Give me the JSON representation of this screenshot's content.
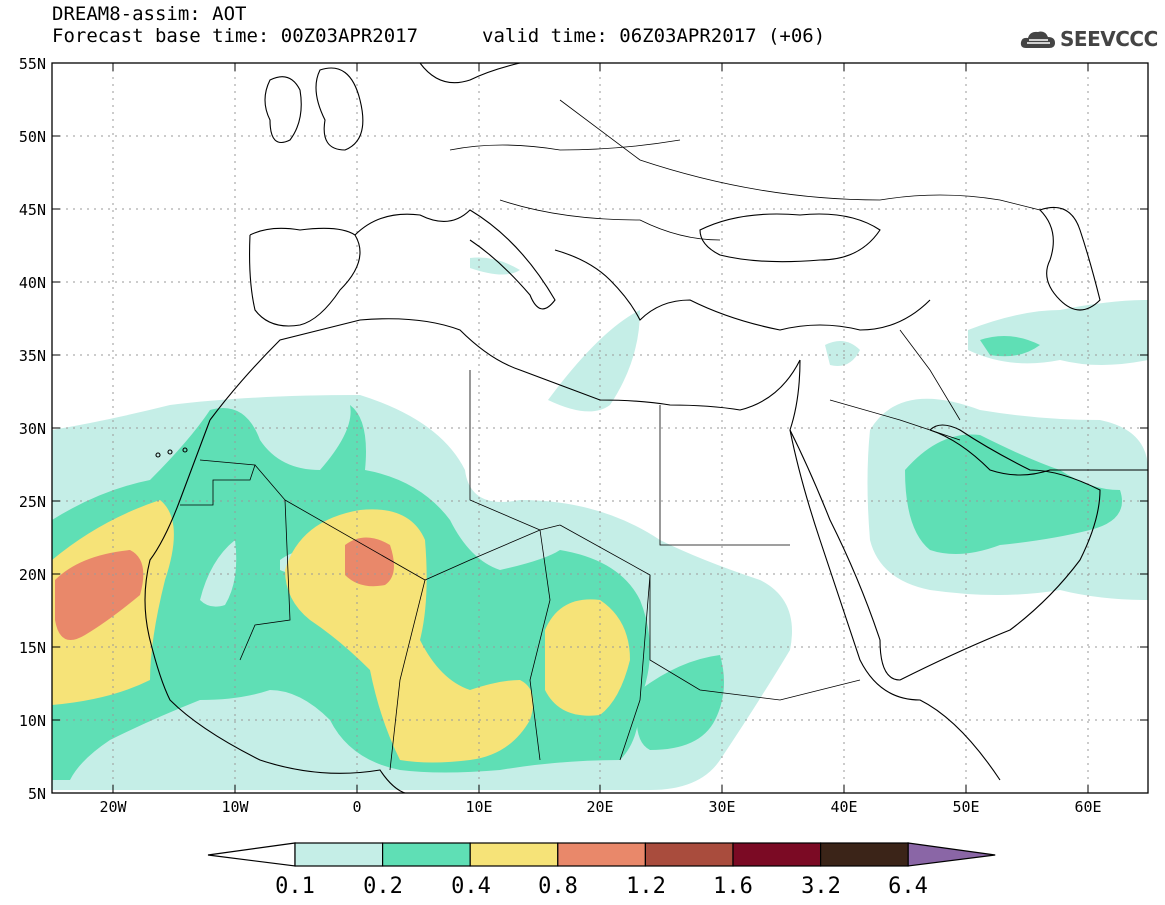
{
  "title": "DREAM8-assim: AOT",
  "forecast": "Forecast base time: 00Z03APR2017",
  "valid": "valid time: 06Z03APR2017 (+06)",
  "logo_text": "SEEVCCC",
  "lat_labels": [
    "55N",
    "50N",
    "45N",
    "40N",
    "35N",
    "30N",
    "25N",
    "20N",
    "15N",
    "10N",
    "5N"
  ],
  "lon_labels": [
    "20W",
    "10W",
    "0",
    "10E",
    "20E",
    "30E",
    "40E",
    "50E",
    "60E"
  ],
  "colorbar": {
    "levels": [
      "0.1",
      "0.2",
      "0.4",
      "0.8",
      "1.2",
      "1.6",
      "3.2",
      "6.4"
    ],
    "colors": [
      "#ffffff",
      "#c5eee7",
      "#5fdfb5",
      "#f6e378",
      "#e9886a",
      "#a94c3d",
      "#7b0a24",
      "#3b2418",
      "#8a66a6"
    ]
  },
  "map_bounds": {
    "lon": [
      -25,
      65
    ],
    "lat": [
      5,
      55
    ]
  }
}
